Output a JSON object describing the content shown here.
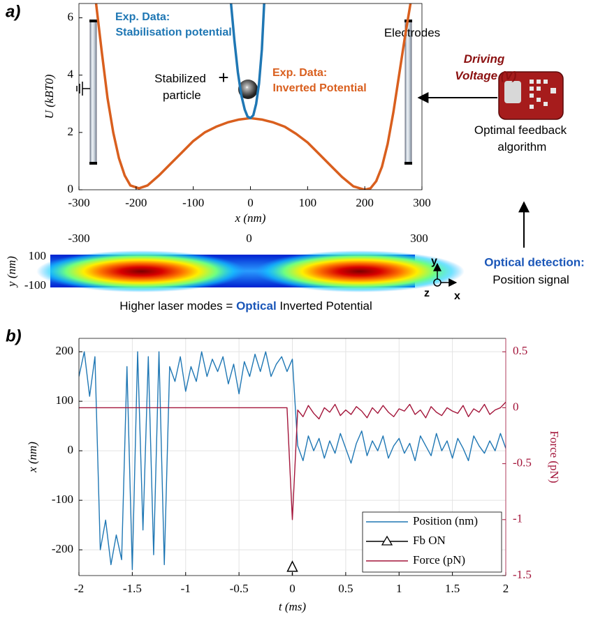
{
  "panel_labels": [
    "a)",
    "b)"
  ],
  "chart_data": [
    {
      "type": "line",
      "xlabel": "x (nm)",
      "ylabel": "U (kBT0)",
      "xlim": [
        -300,
        300
      ],
      "ylim": [
        0,
        6.5
      ],
      "xticks": [
        -300,
        -200,
        -100,
        0,
        100,
        200,
        300
      ],
      "yticks": [
        0,
        2,
        4,
        6
      ],
      "series": [
        {
          "name": "Exp. Data: Inverted Potential",
          "color": "#d95f1e",
          "x": [
            -270,
            -260,
            -250,
            -240,
            -230,
            -220,
            -210,
            -195,
            -180,
            -160,
            -140,
            -120,
            -100,
            -80,
            -60,
            -40,
            -20,
            0,
            20,
            40,
            60,
            80,
            100,
            120,
            140,
            160,
            180,
            200,
            210,
            220,
            230,
            240,
            250,
            260,
            270,
            280
          ],
          "values": [
            6.5,
            4.8,
            3.2,
            2.0,
            1.1,
            0.5,
            0.15,
            0.05,
            0.15,
            0.5,
            0.9,
            1.3,
            1.7,
            2.0,
            2.2,
            2.35,
            2.45,
            2.5,
            2.45,
            2.35,
            2.2,
            1.95,
            1.65,
            1.25,
            0.85,
            0.45,
            0.12,
            0.0,
            0.05,
            0.3,
            0.8,
            1.6,
            2.7,
            4.0,
            5.3,
            6.5
          ]
        },
        {
          "name": "Exp. Data: Stabilisation potential",
          "color": "#1f77b4",
          "x": [
            -34,
            -28,
            -22,
            -16,
            -10,
            -5,
            0,
            5,
            10,
            15,
            20,
            24
          ],
          "values": [
            6.5,
            5.2,
            4.1,
            3.3,
            2.8,
            2.55,
            2.5,
            2.6,
            3.0,
            3.7,
            4.9,
            6.5
          ]
        }
      ],
      "annotations": {
        "particle": "Stabilized particle",
        "electrodes": "Electrodes",
        "driving": "Driving Voltage (V)",
        "algorithm": "Optimal feedback algorithm",
        "detection": "Optical detection:",
        "signal": "Position signal"
      }
    },
    {
      "type": "heatmap",
      "ylabel": "y (nm)",
      "xlim": [
        -300,
        300
      ],
      "ylim": [
        -100,
        100
      ],
      "xticks": [
        -300,
        0,
        300
      ],
      "yticks": [
        100,
        -100
      ],
      "caption": {
        "before": "Higher laser modes = ",
        "highlight": "Optical",
        "after": " Inverted Potential"
      },
      "axes_labels": [
        "y",
        "z",
        "x"
      ]
    },
    {
      "type": "line",
      "xlabel": "t (ms)",
      "ylabel": "x (nm)",
      "y2label": "Force (pN)",
      "xlim": [
        -2,
        2
      ],
      "ylim": [
        -252,
        227
      ],
      "y2lim": [
        -1.5,
        0.62
      ],
      "xticks": [
        -2,
        -1.5,
        -1,
        -0.5,
        0,
        0.5,
        1,
        1.5,
        2
      ],
      "yticks": [
        -200,
        -100,
        0,
        100,
        200
      ],
      "y2ticks": [
        -1.5,
        -1,
        -0.5,
        0,
        0.5
      ],
      "grid": true,
      "legend": "lower right",
      "x": [
        -2,
        -1.95,
        -1.9,
        -1.85,
        -1.8,
        -1.75,
        -1.7,
        -1.65,
        -1.6,
        -1.55,
        -1.5,
        -1.45,
        -1.4,
        -1.35,
        -1.3,
        -1.25,
        -1.2,
        -1.15,
        -1.1,
        -1.05,
        -1,
        -0.95,
        -0.9,
        -0.85,
        -0.8,
        -0.75,
        -0.7,
        -0.65,
        -0.6,
        -0.55,
        -0.5,
        -0.45,
        -0.4,
        -0.35,
        -0.3,
        -0.25,
        -0.2,
        -0.15,
        -0.1,
        -0.05,
        0,
        0.05,
        0.1,
        0.15,
        0.2,
        0.25,
        0.3,
        0.35,
        0.4,
        0.45,
        0.5,
        0.55,
        0.6,
        0.65,
        0.7,
        0.75,
        0.8,
        0.85,
        0.9,
        0.95,
        1,
        1.05,
        1.1,
        1.15,
        1.2,
        1.25,
        1.3,
        1.35,
        1.4,
        1.45,
        1.5,
        1.55,
        1.6,
        1.65,
        1.7,
        1.75,
        1.8,
        1.85,
        1.9,
        1.95,
        2
      ],
      "series": [
        {
          "name": "Position (nm)",
          "color": "#1f77b4",
          "values": [
            150,
            200,
            110,
            190,
            -200,
            -140,
            -230,
            -170,
            -220,
            170,
            -240,
            200,
            -160,
            190,
            -210,
            200,
            -230,
            170,
            140,
            190,
            120,
            170,
            140,
            200,
            150,
            185,
            160,
            190,
            135,
            175,
            115,
            180,
            150,
            195,
            160,
            200,
            150,
            175,
            190,
            160,
            185,
            10,
            -20,
            30,
            0,
            25,
            -15,
            20,
            -5,
            35,
            5,
            -25,
            15,
            40,
            -10,
            20,
            0,
            30,
            -15,
            10,
            25,
            -5,
            15,
            -20,
            30,
            10,
            -10,
            35,
            0,
            20,
            -15,
            25,
            5,
            -20,
            30,
            10,
            -5,
            20,
            0,
            35,
            5
          ]
        },
        {
          "name": "Fb ON",
          "color": "#000000",
          "style": "marker",
          "x": [
            0
          ],
          "values": [
            -235
          ]
        },
        {
          "name": "Force (pN)",
          "color": "#a3153a",
          "axis": "y2",
          "values": [
            0,
            0,
            0,
            0,
            0,
            0,
            0,
            0,
            0,
            0,
            0,
            0,
            0,
            0,
            0,
            0,
            0,
            0,
            0,
            0,
            0,
            0,
            0,
            0,
            0,
            0,
            0,
            0,
            0,
            0,
            0,
            0,
            0,
            0,
            0,
            0,
            0,
            0,
            0,
            0,
            -1,
            -0.02,
            -0.08,
            0.02,
            -0.05,
            -0.1,
            0,
            -0.04,
            0.03,
            -0.07,
            -0.02,
            -0.06,
            0.01,
            -0.03,
            -0.09,
            0,
            -0.05,
            0.02,
            -0.04,
            -0.08,
            -0.01,
            -0.03,
            0.03,
            -0.06,
            -0.02,
            -0.09,
            0.01,
            -0.04,
            -0.07,
            0,
            -0.03,
            -0.05,
            0.02,
            -0.08,
            -0.01,
            -0.04,
            0.03,
            -0.06,
            -0.02,
            0,
            0.05
          ]
        }
      ]
    }
  ]
}
